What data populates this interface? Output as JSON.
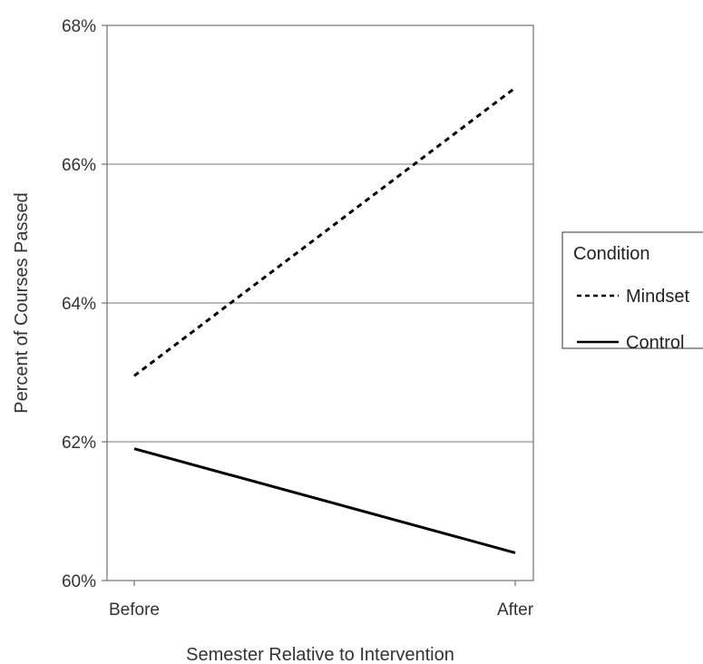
{
  "chart_data": {
    "type": "line",
    "xlabel": "Semester Relative to Intervention",
    "ylabel": "Percent of Courses Passed",
    "categories": [
      "Before",
      "After"
    ],
    "ylim": [
      60,
      68
    ],
    "yticks": [
      60,
      62,
      64,
      66,
      68
    ],
    "ytick_labels": [
      "60%",
      "62%",
      "64%",
      "66%",
      "68%"
    ],
    "grid": "horizontal",
    "series": [
      {
        "name": "Mindset",
        "values": [
          62.95,
          67.1
        ],
        "style": "dashed",
        "color": "#000000"
      },
      {
        "name": "Control",
        "values": [
          61.9,
          60.4
        ],
        "style": "solid",
        "color": "#000000"
      }
    ],
    "legend": {
      "title": "Condition",
      "position": "right"
    }
  }
}
